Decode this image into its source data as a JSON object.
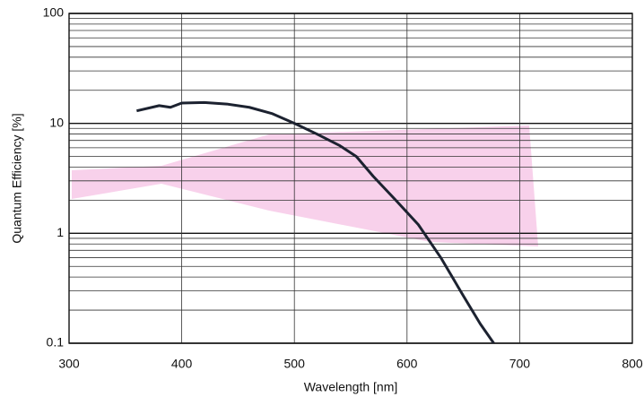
{
  "chart_data": {
    "type": "line",
    "x_label": "Wavelength [nm]",
    "y_label": "Quantum Efficiency [%]",
    "log_y": true,
    "grid": true,
    "xlim": [
      300,
      800
    ],
    "xticks": [
      300,
      400,
      500,
      600,
      700,
      800
    ],
    "ylim": [
      0.1,
      100
    ],
    "yticks": [
      0.1,
      1,
      10,
      100
    ],
    "yminorticks": [
      0.2,
      0.3,
      0.4,
      0.5,
      0.6,
      0.7,
      0.8,
      0.9,
      2,
      3,
      4,
      5,
      6,
      7,
      8,
      9,
      20,
      30,
      40,
      50,
      60,
      70,
      80,
      90
    ],
    "x": [
      360,
      380,
      390,
      400,
      420,
      440,
      460,
      480,
      500,
      520,
      540,
      555,
      570,
      590,
      610,
      630,
      650,
      665,
      677
    ],
    "series": [
      {
        "color": "#1c2230",
        "values": [
          13,
          14.5,
          14,
          15.3,
          15.5,
          15,
          14,
          12.3,
          10,
          8,
          6.3,
          5,
          3.3,
          2,
          1.2,
          0.6,
          0.27,
          0.15,
          0.1
        ]
      }
    ]
  }
}
